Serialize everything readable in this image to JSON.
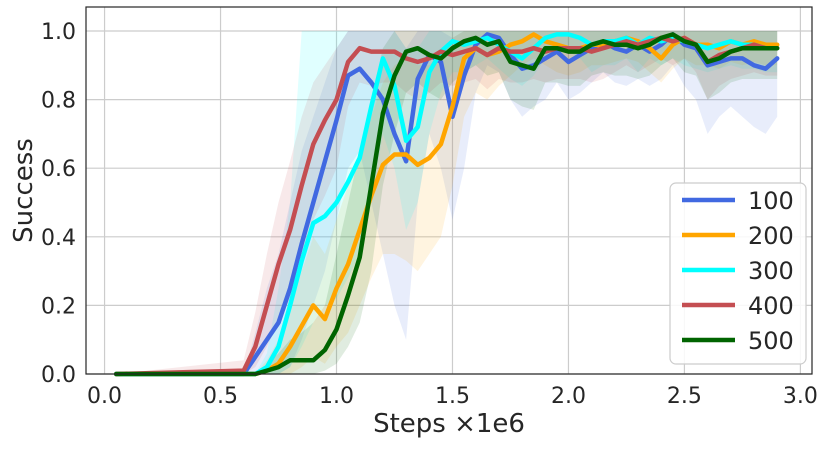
{
  "chart_data": {
    "type": "line",
    "title": "",
    "xlabel": "Steps ×1e6",
    "ylabel": "Success",
    "xlim": [
      -0.08,
      3.05
    ],
    "ylim": [
      0.0,
      1.07
    ],
    "xticks": [
      0.0,
      0.5,
      1.0,
      1.5,
      2.0,
      2.5,
      3.0
    ],
    "xtick_labels": [
      "0.0",
      "0.5",
      "1.0",
      "1.5",
      "2.0",
      "2.5",
      "3.0"
    ],
    "yticks": [
      0.0,
      0.2,
      0.4,
      0.6,
      0.8,
      1.0
    ],
    "ytick_labels": [
      "0.0",
      "0.2",
      "0.4",
      "0.6",
      "0.8",
      "1.0"
    ],
    "grid": true,
    "legend_position": "lower-right",
    "band_opacity": 0.12,
    "series": [
      {
        "name": "100",
        "color": "#4169e1",
        "x": [
          0.05,
          0.6,
          0.65,
          0.7,
          0.75,
          0.8,
          0.85,
          0.9,
          0.95,
          1.0,
          1.05,
          1.1,
          1.15,
          1.2,
          1.25,
          1.3,
          1.35,
          1.4,
          1.45,
          1.5,
          1.55,
          1.6,
          1.65,
          1.7,
          1.75,
          1.8,
          1.85,
          1.9,
          1.95,
          2.0,
          2.05,
          2.1,
          2.15,
          2.2,
          2.25,
          2.3,
          2.35,
          2.4,
          2.45,
          2.5,
          2.55,
          2.6,
          2.65,
          2.7,
          2.75,
          2.8,
          2.85,
          2.9
        ],
        "y": [
          0,
          0,
          0.05,
          0.1,
          0.15,
          0.25,
          0.38,
          0.5,
          0.62,
          0.74,
          0.87,
          0.89,
          0.85,
          0.8,
          0.7,
          0.62,
          0.86,
          0.93,
          0.91,
          0.75,
          0.87,
          0.96,
          0.99,
          0.98,
          0.93,
          0.89,
          0.9,
          0.92,
          0.94,
          0.91,
          0.93,
          0.95,
          0.97,
          0.95,
          0.94,
          0.96,
          0.94,
          0.96,
          0.99,
          0.96,
          0.95,
          0.9,
          0.91,
          0.92,
          0.92,
          0.9,
          0.89,
          0.92
        ],
        "lower": [
          0,
          0,
          0,
          0,
          0,
          0.02,
          0.1,
          0.2,
          0.3,
          0.45,
          0.6,
          0.65,
          0.5,
          0.35,
          0.2,
          0.1,
          0.5,
          0.7,
          0.6,
          0.45,
          0.6,
          0.82,
          0.9,
          0.88,
          0.8,
          0.75,
          0.78,
          0.8,
          0.85,
          0.8,
          0.82,
          0.85,
          0.88,
          0.85,
          0.84,
          0.86,
          0.84,
          0.86,
          0.9,
          0.84,
          0.8,
          0.7,
          0.75,
          0.78,
          0.75,
          0.72,
          0.7,
          0.75
        ],
        "upper": [
          0,
          0,
          0.12,
          0.25,
          0.35,
          0.5,
          0.65,
          0.75,
          0.85,
          0.95,
          1.0,
          1.0,
          1.0,
          1.0,
          1.0,
          0.95,
          1.0,
          1.0,
          1.0,
          0.98,
          1.0,
          1.0,
          1.0,
          1.0,
          1.0,
          1.0,
          1.0,
          1.0,
          1.0,
          1.0,
          1.0,
          1.0,
          1.0,
          1.0,
          1.0,
          1.0,
          1.0,
          1.0,
          1.0,
          1.0,
          1.0,
          1.0,
          1.0,
          1.0,
          1.0,
          1.0,
          1.0,
          1.0
        ]
      },
      {
        "name": "200",
        "color": "#ffa500",
        "x": [
          0.05,
          0.6,
          0.65,
          0.7,
          0.75,
          0.8,
          0.85,
          0.9,
          0.95,
          1.0,
          1.05,
          1.1,
          1.15,
          1.2,
          1.25,
          1.3,
          1.35,
          1.4,
          1.45,
          1.5,
          1.55,
          1.6,
          1.65,
          1.7,
          1.75,
          1.8,
          1.85,
          1.9,
          1.95,
          2.0,
          2.05,
          2.1,
          2.15,
          2.2,
          2.25,
          2.3,
          2.35,
          2.4,
          2.45,
          2.5,
          2.55,
          2.6,
          2.65,
          2.7,
          2.75,
          2.8,
          2.85,
          2.9
        ],
        "y": [
          0,
          0,
          0,
          0.01,
          0.03,
          0.08,
          0.14,
          0.2,
          0.16,
          0.25,
          0.32,
          0.42,
          0.52,
          0.61,
          0.64,
          0.64,
          0.61,
          0.63,
          0.67,
          0.78,
          0.92,
          0.95,
          0.93,
          0.94,
          0.96,
          0.97,
          0.99,
          0.97,
          0.96,
          0.95,
          0.95,
          0.96,
          0.96,
          0.97,
          0.98,
          0.97,
          0.95,
          0.92,
          0.96,
          0.98,
          0.96,
          0.96,
          0.95,
          0.97,
          0.96,
          0.97,
          0.96,
          0.96
        ],
        "lower": [
          0,
          0,
          0,
          0,
          0,
          0,
          0.02,
          0.05,
          0.03,
          0.08,
          0.12,
          0.2,
          0.28,
          0.35,
          0.35,
          0.33,
          0.3,
          0.35,
          0.4,
          0.55,
          0.75,
          0.82,
          0.8,
          0.84,
          0.87,
          0.9,
          0.92,
          0.9,
          0.88,
          0.87,
          0.88,
          0.9,
          0.9,
          0.91,
          0.92,
          0.91,
          0.88,
          0.85,
          0.89,
          0.92,
          0.9,
          0.9,
          0.89,
          0.91,
          0.9,
          0.91,
          0.9,
          0.9
        ],
        "upper": [
          0,
          0,
          0,
          0.04,
          0.1,
          0.2,
          0.3,
          0.4,
          0.35,
          0.45,
          0.55,
          0.65,
          0.75,
          0.85,
          0.9,
          0.92,
          0.9,
          0.9,
          0.93,
          0.98,
          1.0,
          1.0,
          1.0,
          1.0,
          1.0,
          1.0,
          1.0,
          1.0,
          1.0,
          1.0,
          1.0,
          1.0,
          1.0,
          1.0,
          1.0,
          1.0,
          1.0,
          1.0,
          1.0,
          1.0,
          1.0,
          1.0,
          1.0,
          1.0,
          1.0,
          1.0,
          1.0,
          1.0
        ]
      },
      {
        "name": "300",
        "color": "#00ffff",
        "x": [
          0.05,
          0.6,
          0.65,
          0.7,
          0.75,
          0.8,
          0.85,
          0.9,
          0.95,
          1.0,
          1.05,
          1.1,
          1.15,
          1.2,
          1.25,
          1.3,
          1.35,
          1.4,
          1.45,
          1.5,
          1.55,
          1.6,
          1.65,
          1.7,
          1.75,
          1.8,
          1.85,
          1.9,
          1.95,
          2.0,
          2.05,
          2.1,
          2.15,
          2.2,
          2.25,
          2.3,
          2.35,
          2.4,
          2.45,
          2.5,
          2.55,
          2.6,
          2.65,
          2.7,
          2.75,
          2.8,
          2.85,
          2.9
        ],
        "y": [
          0,
          0,
          0,
          0.02,
          0.08,
          0.2,
          0.33,
          0.44,
          0.46,
          0.5,
          0.56,
          0.63,
          0.78,
          0.92,
          0.84,
          0.68,
          0.72,
          0.88,
          0.94,
          0.97,
          0.96,
          0.97,
          0.98,
          0.96,
          0.94,
          0.92,
          0.95,
          0.98,
          0.99,
          0.99,
          0.98,
          0.96,
          0.97,
          0.97,
          0.98,
          0.96,
          0.98,
          0.97,
          0.98,
          0.97,
          0.96,
          0.95,
          0.96,
          0.97,
          0.96,
          0.96,
          0.95,
          0.95
        ],
        "lower": [
          0,
          0,
          0,
          0,
          0,
          0.02,
          0.08,
          0.15,
          0.2,
          0.22,
          0.28,
          0.35,
          0.5,
          0.7,
          0.6,
          0.42,
          0.5,
          0.7,
          0.82,
          0.88,
          0.88,
          0.9,
          0.92,
          0.89,
          0.86,
          0.84,
          0.87,
          0.92,
          0.94,
          0.94,
          0.92,
          0.88,
          0.9,
          0.9,
          0.92,
          0.88,
          0.92,
          0.9,
          0.92,
          0.9,
          0.89,
          0.88,
          0.89,
          0.9,
          0.89,
          0.89,
          0.88,
          0.88
        ],
        "upper": [
          0,
          0,
          0,
          0.06,
          0.25,
          0.5,
          1.0,
          1.0,
          1.0,
          1.0,
          1.0,
          1.0,
          1.0,
          1.0,
          1.0,
          0.95,
          0.95,
          1.0,
          1.0,
          1.0,
          1.0,
          1.0,
          1.0,
          1.0,
          1.0,
          1.0,
          1.0,
          1.0,
          1.0,
          1.0,
          1.0,
          1.0,
          1.0,
          1.0,
          1.0,
          1.0,
          1.0,
          1.0,
          1.0,
          1.0,
          1.0,
          1.0,
          1.0,
          1.0,
          1.0,
          1.0,
          1.0,
          1.0
        ]
      },
      {
        "name": "400",
        "color": "#c44e52",
        "x": [
          0.05,
          0.6,
          0.65,
          0.7,
          0.75,
          0.8,
          0.85,
          0.9,
          0.95,
          1.0,
          1.05,
          1.1,
          1.15,
          1.2,
          1.25,
          1.3,
          1.35,
          1.4,
          1.45,
          1.5,
          1.55,
          1.6,
          1.65,
          1.7,
          1.75,
          1.8,
          1.85,
          1.9,
          1.95,
          2.0,
          2.05,
          2.1,
          2.15,
          2.2,
          2.25,
          2.3,
          2.35,
          2.4,
          2.45,
          2.5,
          2.55,
          2.6,
          2.65,
          2.7,
          2.75,
          2.8,
          2.85,
          2.9
        ],
        "y": [
          0,
          0.01,
          0.08,
          0.2,
          0.32,
          0.42,
          0.55,
          0.67,
          0.74,
          0.8,
          0.91,
          0.95,
          0.94,
          0.94,
          0.94,
          0.92,
          0.91,
          0.92,
          0.94,
          0.93,
          0.94,
          0.95,
          0.93,
          0.95,
          0.94,
          0.94,
          0.95,
          0.94,
          0.95,
          0.95,
          0.95,
          0.94,
          0.95,
          0.96,
          0.97,
          0.96,
          0.97,
          0.98,
          0.97,
          0.98,
          0.96,
          0.91,
          0.93,
          0.94,
          0.95,
          0.96,
          0.95,
          0.95
        ],
        "lower": [
          0,
          0,
          0.02,
          0.08,
          0.15,
          0.22,
          0.32,
          0.45,
          0.52,
          0.6,
          0.78,
          0.85,
          0.84,
          0.85,
          0.85,
          0.82,
          0.8,
          0.82,
          0.85,
          0.84,
          0.85,
          0.86,
          0.83,
          0.86,
          0.85,
          0.85,
          0.86,
          0.85,
          0.86,
          0.86,
          0.86,
          0.85,
          0.86,
          0.88,
          0.9,
          0.88,
          0.9,
          0.92,
          0.9,
          0.92,
          0.88,
          0.8,
          0.84,
          0.86,
          0.87,
          0.88,
          0.87,
          0.87
        ],
        "upper": [
          0,
          0.04,
          0.18,
          0.35,
          0.5,
          0.62,
          0.75,
          0.85,
          0.9,
          0.95,
          1.0,
          1.0,
          1.0,
          1.0,
          1.0,
          1.0,
          1.0,
          1.0,
          1.0,
          1.0,
          1.0,
          1.0,
          1.0,
          1.0,
          1.0,
          1.0,
          1.0,
          1.0,
          1.0,
          1.0,
          1.0,
          1.0,
          1.0,
          1.0,
          1.0,
          1.0,
          1.0,
          1.0,
          1.0,
          1.0,
          1.0,
          1.0,
          1.0,
          1.0,
          1.0,
          1.0,
          1.0,
          1.0
        ]
      },
      {
        "name": "500",
        "color": "#006400",
        "x": [
          0.05,
          0.6,
          0.65,
          0.7,
          0.75,
          0.8,
          0.85,
          0.9,
          0.95,
          1.0,
          1.05,
          1.1,
          1.15,
          1.2,
          1.25,
          1.3,
          1.35,
          1.4,
          1.45,
          1.5,
          1.55,
          1.6,
          1.65,
          1.7,
          1.75,
          1.8,
          1.85,
          1.9,
          1.95,
          2.0,
          2.05,
          2.1,
          2.15,
          2.2,
          2.25,
          2.3,
          2.35,
          2.4,
          2.45,
          2.5,
          2.55,
          2.6,
          2.65,
          2.7,
          2.75,
          2.8,
          2.85,
          2.9
        ],
        "y": [
          0,
          0,
          0,
          0.01,
          0.02,
          0.04,
          0.04,
          0.04,
          0.07,
          0.13,
          0.23,
          0.34,
          0.55,
          0.76,
          0.87,
          0.94,
          0.95,
          0.93,
          0.92,
          0.95,
          0.97,
          0.98,
          0.96,
          0.97,
          0.91,
          0.9,
          0.89,
          0.95,
          0.95,
          0.94,
          0.94,
          0.96,
          0.97,
          0.96,
          0.96,
          0.95,
          0.96,
          0.98,
          0.99,
          0.97,
          0.96,
          0.91,
          0.92,
          0.94,
          0.95,
          0.95,
          0.95,
          0.95
        ],
        "lower": [
          0,
          0,
          0,
          0,
          0,
          0,
          0,
          0,
          0.01,
          0.03,
          0.08,
          0.15,
          0.3,
          0.55,
          0.7,
          0.82,
          0.85,
          0.82,
          0.8,
          0.85,
          0.88,
          0.9,
          0.87,
          0.88,
          0.8,
          0.78,
          0.77,
          0.85,
          0.85,
          0.84,
          0.84,
          0.87,
          0.88,
          0.87,
          0.87,
          0.86,
          0.87,
          0.9,
          0.92,
          0.88,
          0.87,
          0.8,
          0.82,
          0.85,
          0.86,
          0.86,
          0.86,
          0.86
        ],
        "upper": [
          0,
          0,
          0,
          0.03,
          0.06,
          0.1,
          0.12,
          0.15,
          0.2,
          0.35,
          0.5,
          0.65,
          0.8,
          0.95,
          1.0,
          1.0,
          1.0,
          1.0,
          1.0,
          1.0,
          1.0,
          1.0,
          1.0,
          1.0,
          1.0,
          1.0,
          1.0,
          1.0,
          1.0,
          1.0,
          1.0,
          1.0,
          1.0,
          1.0,
          1.0,
          1.0,
          1.0,
          1.0,
          1.0,
          1.0,
          1.0,
          1.0,
          1.0,
          1.0,
          1.0,
          1.0,
          1.0,
          1.0
        ]
      }
    ]
  }
}
